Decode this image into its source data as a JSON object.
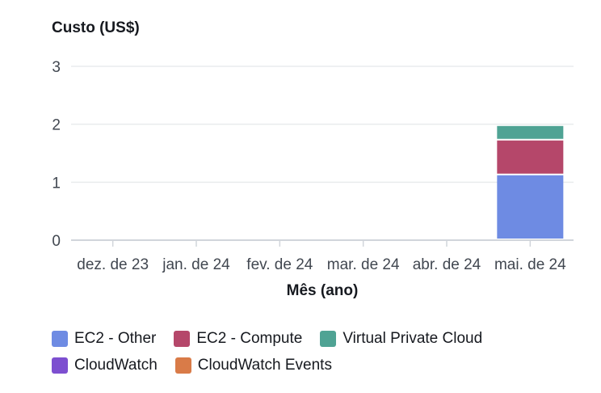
{
  "chart_data": {
    "type": "bar",
    "stacked": true,
    "ylabel": "Custo (US$)",
    "xlabel": "Mês (ano)",
    "categories": [
      "dez. de 23",
      "jan. de 24",
      "fev. de 24",
      "mar. de 24",
      "abr. de 24",
      "mai. de 24"
    ],
    "yticks": [
      "0",
      "1",
      "2",
      "3"
    ],
    "ylim": [
      0,
      3
    ],
    "grid": true,
    "legend_position": "bottom",
    "series": [
      {
        "name": "EC2 - Other",
        "color": "#6e8be3",
        "values": [
          0,
          0,
          0,
          0,
          0,
          1.12
        ]
      },
      {
        "name": "EC2 - Compute",
        "color": "#b5476a",
        "values": [
          0,
          0,
          0,
          0,
          0,
          0.6
        ]
      },
      {
        "name": "Virtual Private Cloud",
        "color": "#4fa394",
        "values": [
          0,
          0,
          0,
          0,
          0,
          0.25
        ]
      },
      {
        "name": "CloudWatch",
        "color": "#7d4fd0",
        "values": [
          0,
          0,
          0,
          0,
          0,
          0
        ]
      },
      {
        "name": "CloudWatch Events",
        "color": "#d97b48",
        "values": [
          0,
          0,
          0,
          0,
          0,
          0
        ]
      }
    ]
  }
}
